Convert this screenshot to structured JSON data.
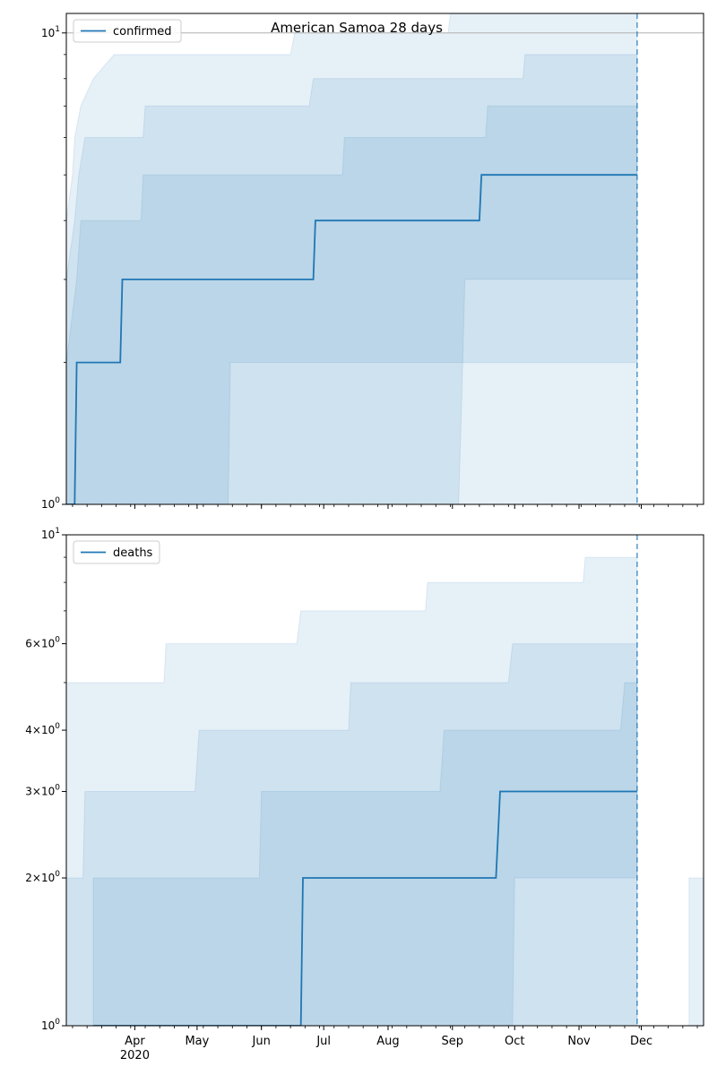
{
  "title": "American Samoa 28 days",
  "colors": {
    "line": "#1f77b4",
    "band": "#1f77b4",
    "axis": "#000000",
    "hline": "#b0b0b0",
    "background": "#ffffff"
  },
  "x_axis": {
    "month_labels": [
      "Apr",
      "May",
      "Jun",
      "Jul",
      "Aug",
      "Sep",
      "Oct",
      "Nov",
      "Dec"
    ],
    "year_label": "2020"
  },
  "chart_data": [
    {
      "type": "line",
      "name": "confirmed-panel",
      "legend": "top-left",
      "legend_label": "confirmed",
      "yscale": "log",
      "ylim": [
        1,
        11
      ],
      "ytick_labels": [
        "10^0",
        "10^1"
      ],
      "xlim": [
        "2020-02-28",
        "2020-12-31"
      ],
      "vline": "2020-11-29",
      "hline": 10,
      "series": [
        {
          "name": "confirmed",
          "points": [
            [
              "2020-02-28",
              1
            ],
            [
              "2020-03-03",
              1
            ],
            [
              "2020-03-04",
              2
            ],
            [
              "2020-03-25",
              2
            ],
            [
              "2020-03-26",
              3
            ],
            [
              "2020-06-26",
              3
            ],
            [
              "2020-06-27",
              4
            ],
            [
              "2020-09-14",
              4
            ],
            [
              "2020-09-15",
              5
            ],
            [
              "2020-11-29",
              5
            ]
          ]
        }
      ],
      "bands": [
        {
          "name": "band-outer",
          "upper": [
            [
              "2020-02-28",
              4
            ],
            [
              "2020-03-02",
              5
            ],
            [
              "2020-03-03",
              6
            ],
            [
              "2020-03-06",
              7
            ],
            [
              "2020-03-12",
              8
            ],
            [
              "2020-03-22",
              9
            ],
            [
              "2020-06-15",
              9
            ],
            [
              "2020-06-17",
              10
            ],
            [
              "2020-08-30",
              10
            ],
            [
              "2020-08-31",
              11
            ],
            [
              "2020-11-29",
              11
            ]
          ],
          "lower": [
            [
              "2020-02-28",
              1
            ],
            [
              "2020-11-29",
              1
            ]
          ]
        },
        {
          "name": "band-mid",
          "upper": [
            [
              "2020-02-28",
              3
            ],
            [
              "2020-03-03",
              4
            ],
            [
              "2020-03-05",
              5
            ],
            [
              "2020-03-08",
              6
            ],
            [
              "2020-04-05",
              6
            ],
            [
              "2020-04-06",
              7
            ],
            [
              "2020-06-24",
              7
            ],
            [
              "2020-06-26",
              8
            ],
            [
              "2020-10-05",
              8
            ],
            [
              "2020-10-06",
              9
            ],
            [
              "2020-11-29",
              9
            ]
          ],
          "lower": [
            [
              "2020-02-28",
              1
            ],
            [
              "2020-09-04",
              1
            ],
            [
              "2020-09-06",
              2
            ],
            [
              "2020-11-29",
              2
            ]
          ]
        },
        {
          "name": "band-inner",
          "upper": [
            [
              "2020-02-28",
              2
            ],
            [
              "2020-03-04",
              3
            ],
            [
              "2020-03-06",
              4
            ],
            [
              "2020-04-04",
              4
            ],
            [
              "2020-04-05",
              5
            ],
            [
              "2020-07-10",
              5
            ],
            [
              "2020-07-11",
              6
            ],
            [
              "2020-09-17",
              6
            ],
            [
              "2020-09-18",
              7
            ],
            [
              "2020-11-29",
              7
            ]
          ],
          "lower": [
            [
              "2020-02-28",
              1
            ],
            [
              "2020-05-16",
              1
            ],
            [
              "2020-05-17",
              2
            ],
            [
              "2020-09-06",
              2
            ],
            [
              "2020-09-07",
              3
            ],
            [
              "2020-11-29",
              3
            ]
          ]
        }
      ]
    },
    {
      "type": "line",
      "name": "deaths-panel",
      "legend": "top-left",
      "legend_label": "deaths",
      "yscale": "log",
      "ylim": [
        1,
        10
      ],
      "ytick_labels": [
        "10^0",
        "2×10^0",
        "3×10^0",
        "4×10^0",
        "6×10^0",
        "10^1"
      ],
      "xlim": [
        "2020-02-28",
        "2020-12-31"
      ],
      "vline": "2020-11-29",
      "series": [
        {
          "name": "deaths",
          "points": [
            [
              "2020-03-12",
              1
            ],
            [
              "2020-06-20",
              1
            ],
            [
              "2020-06-21",
              2
            ],
            [
              "2020-09-22",
              2
            ],
            [
              "2020-09-24",
              3
            ],
            [
              "2020-11-29",
              3
            ]
          ]
        }
      ],
      "bands": [
        {
          "name": "band-outer",
          "upper": [
            [
              "2020-02-28",
              5
            ],
            [
              "2020-04-15",
              5
            ],
            [
              "2020-04-16",
              6
            ],
            [
              "2020-06-18",
              6
            ],
            [
              "2020-06-20",
              7
            ],
            [
              "2020-08-19",
              7
            ],
            [
              "2020-08-20",
              8
            ],
            [
              "2020-11-03",
              8
            ],
            [
              "2020-11-04",
              9
            ],
            [
              "2020-11-29",
              9
            ]
          ],
          "lower": [
            [
              "2020-02-28",
              1
            ],
            [
              "2020-11-29",
              1
            ]
          ]
        },
        {
          "name": "band-mid",
          "upper": [
            [
              "2020-02-28",
              2
            ],
            [
              "2020-03-07",
              2
            ],
            [
              "2020-03-08",
              3
            ],
            [
              "2020-04-30",
              3
            ],
            [
              "2020-05-02",
              4
            ],
            [
              "2020-07-13",
              4
            ],
            [
              "2020-07-14",
              5
            ],
            [
              "2020-09-28",
              5
            ],
            [
              "2020-09-30",
              6
            ],
            [
              "2020-11-29",
              6
            ]
          ],
          "lower": [
            [
              "2020-02-28",
              1
            ],
            [
              "2020-09-30",
              1
            ],
            [
              "2020-10-01",
              2
            ],
            [
              "2020-11-29",
              2
            ]
          ]
        },
        {
          "name": "band-inner",
          "upper": [
            [
              "2020-03-12",
              2
            ],
            [
              "2020-05-31",
              2
            ],
            [
              "2020-06-01",
              3
            ],
            [
              "2020-08-26",
              3
            ],
            [
              "2020-08-28",
              4
            ],
            [
              "2020-11-21",
              4
            ],
            [
              "2020-11-23",
              5
            ],
            [
              "2020-11-29",
              5
            ]
          ],
          "lower": [
            [
              "2020-03-12",
              1
            ],
            [
              "2020-11-29",
              1
            ]
          ]
        },
        {
          "name": "band-extra",
          "upper": [
            [
              "2020-12-24",
              2
            ],
            [
              "2020-12-31",
              2
            ]
          ],
          "lower": [
            [
              "2020-12-24",
              1
            ],
            [
              "2020-12-31",
              1
            ]
          ]
        }
      ]
    }
  ]
}
